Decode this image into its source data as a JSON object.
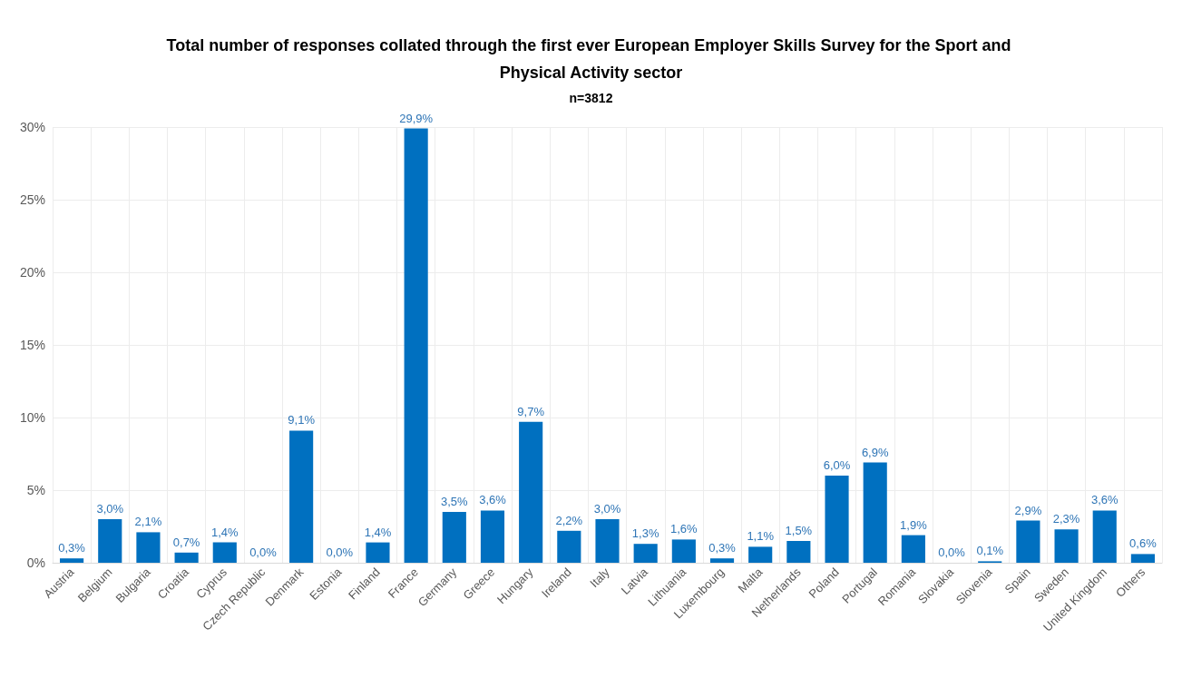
{
  "chart_data": {
    "type": "bar",
    "title": "Total number of responses collated through the first ever European Employer Skills Survey for the Sport and Physical Activity sector",
    "subtitle": "n=3812",
    "categories": [
      "Austria",
      "Belgium",
      "Bulgaria",
      "Croatia",
      "Cyprus",
      "Czech Republic",
      "Denmark",
      "Estonia",
      "Finland",
      "France",
      "Germany",
      "Greece",
      "Hungary",
      "Ireland",
      "Italy",
      "Latvia",
      "Lithuania",
      "Luxembourg",
      "Malta",
      "Netherlands",
      "Poland",
      "Portugal",
      "Romania",
      "Slovakia",
      "Slovenia",
      "Spain",
      "Sweden",
      "United Kingdom",
      "Others"
    ],
    "values": [
      0.3,
      3.0,
      2.1,
      0.7,
      1.4,
      0.0,
      9.1,
      0.0,
      1.4,
      29.9,
      3.5,
      3.6,
      9.7,
      2.2,
      3.0,
      1.3,
      1.6,
      0.3,
      1.1,
      1.5,
      6.0,
      6.9,
      1.9,
      0.0,
      0.1,
      2.9,
      2.3,
      3.6,
      0.6
    ],
    "value_labels": [
      "0,3%",
      "3,0%",
      "2,1%",
      "0,7%",
      "1,4%",
      "0,0%",
      "9,1%",
      "0,0%",
      "1,4%",
      "29,9%",
      "3,5%",
      "3,6%",
      "9,7%",
      "2,2%",
      "3,0%",
      "1,3%",
      "1,6%",
      "0,3%",
      "1,1%",
      "1,5%",
      "6,0%",
      "6,9%",
      "1,9%",
      "0,0%",
      "0,1%",
      "2,9%",
      "2,3%",
      "3,6%",
      "0,6%"
    ],
    "color": "#0070c0",
    "ylim": [
      0,
      30
    ],
    "yticks": [
      {
        "value": 0,
        "label": "0%"
      },
      {
        "value": 5,
        "label": "5%"
      },
      {
        "value": 10,
        "label": "10%"
      },
      {
        "value": 15,
        "label": "15%"
      },
      {
        "value": 20,
        "label": "20%"
      },
      {
        "value": 25,
        "label": "25%"
      },
      {
        "value": 30,
        "label": "30%"
      }
    ],
    "grid": true
  }
}
